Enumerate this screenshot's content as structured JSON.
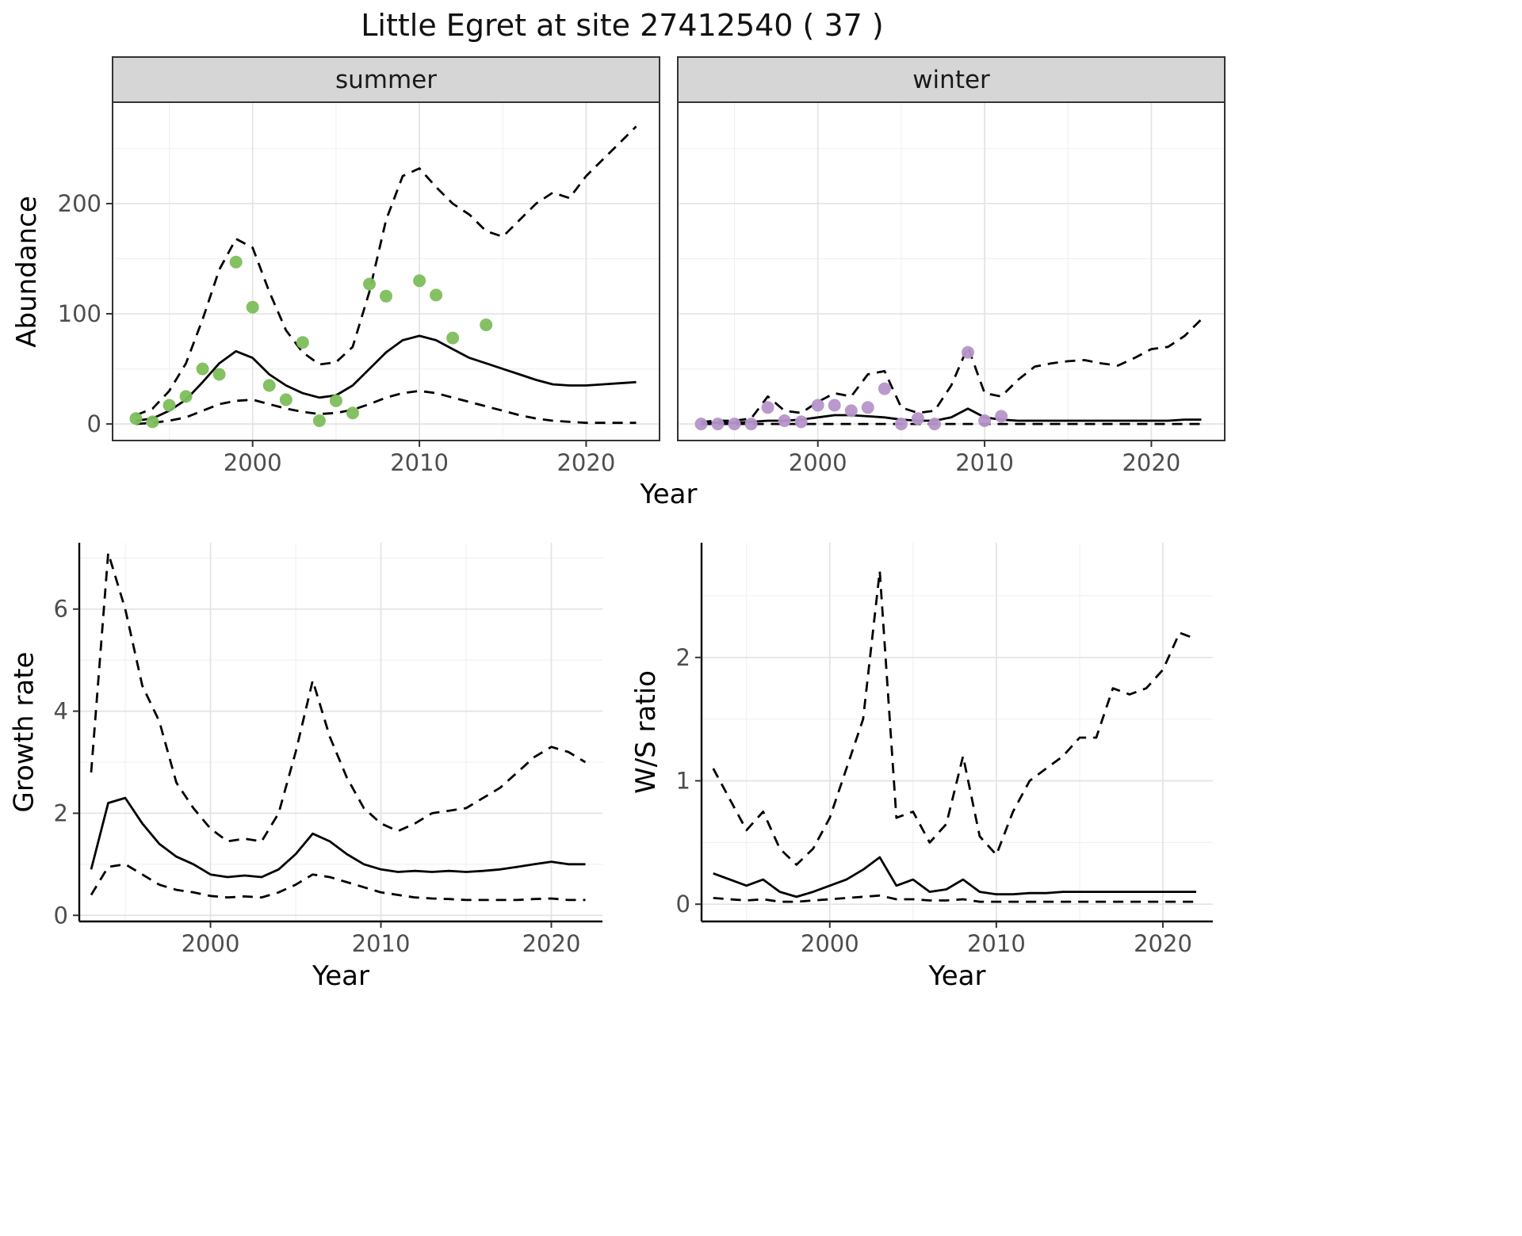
{
  "title": "Little Egret at site 27412540 ( 37 )",
  "top_row": {
    "ylabel": "Abundance",
    "xlabel": "Year",
    "facets": [
      {
        "label": "summer"
      },
      {
        "label": "winter"
      }
    ]
  },
  "bottom_left": {
    "ylabel": "Growth rate",
    "xlabel": "Year"
  },
  "bottom_right": {
    "ylabel": "W/S ratio",
    "xlabel": "Year"
  },
  "colors": {
    "summer_points": "#7cbe5b",
    "winter_points": "#b694c9",
    "line": "#000000",
    "strip_fill": "#d6d6d6",
    "tick_text": "#4d4d4d"
  },
  "chart_data": [
    {
      "id": "summer",
      "type": "line",
      "facet": "summer",
      "title": "Little Egret at site 27412540 ( 37 )",
      "xlabel": "Year",
      "ylabel": "Abundance",
      "grid": true,
      "legend": "none",
      "xlim": [
        1991.6,
        2024.4
      ],
      "ylim": [
        -15,
        292
      ],
      "xticks": [
        2000,
        2010,
        2020
      ],
      "yticks": [
        0,
        100,
        200
      ],
      "series": [
        {
          "name": "fit",
          "style": "solid",
          "x": [
            1993,
            1994,
            1995,
            1996,
            1997,
            1998,
            1999,
            2000,
            2001,
            2002,
            2003,
            2004,
            2005,
            2006,
            2007,
            2008,
            2009,
            2010,
            2011,
            2012,
            2013,
            2014,
            2015,
            2016,
            2017,
            2018,
            2019,
            2020,
            2021,
            2022,
            2023
          ],
          "y": [
            3,
            5,
            12,
            22,
            38,
            55,
            66,
            60,
            45,
            35,
            28,
            24,
            26,
            35,
            50,
            65,
            76,
            80,
            76,
            68,
            60,
            55,
            50,
            45,
            40,
            36,
            35,
            35,
            36,
            37,
            38
          ]
        },
        {
          "name": "upper_ci",
          "style": "dashed",
          "x": [
            1993,
            1994,
            1995,
            1996,
            1997,
            1998,
            1999,
            2000,
            2001,
            2002,
            2003,
            2004,
            2005,
            2006,
            2007,
            2008,
            2009,
            2010,
            2011,
            2012,
            2013,
            2014,
            2015,
            2016,
            2017,
            2018,
            2019,
            2020,
            2021,
            2022,
            2023
          ],
          "y": [
            8,
            14,
            30,
            55,
            95,
            140,
            168,
            160,
            120,
            85,
            65,
            54,
            56,
            70,
            120,
            185,
            225,
            232,
            215,
            200,
            190,
            175,
            170,
            185,
            200,
            210,
            205,
            225,
            240,
            255,
            270
          ]
        },
        {
          "name": "lower_ci",
          "style": "dashed",
          "x": [
            1993,
            1994,
            1995,
            1996,
            1997,
            1998,
            1999,
            2000,
            2001,
            2002,
            2003,
            2004,
            2005,
            2006,
            2007,
            2008,
            2009,
            2010,
            2011,
            2012,
            2013,
            2014,
            2015,
            2016,
            2017,
            2018,
            2019,
            2020,
            2021,
            2022,
            2023
          ],
          "y": [
            0,
            1,
            3,
            6,
            12,
            18,
            21,
            22,
            18,
            14,
            11,
            9,
            10,
            13,
            18,
            24,
            28,
            30,
            28,
            24,
            20,
            16,
            12,
            8,
            5,
            3,
            2,
            1,
            1,
            1,
            1
          ]
        }
      ],
      "points": {
        "name": "observed_counts",
        "color": "#7cbe5b",
        "x": [
          1993,
          1994,
          1995,
          1996,
          1997,
          1998,
          1999,
          2000,
          2001,
          2002,
          2003,
          2004,
          2005,
          2006,
          2007,
          2008,
          2010,
          2011,
          2012,
          2014
        ],
        "y": [
          5,
          2,
          17,
          25,
          50,
          45,
          147,
          106,
          35,
          22,
          74,
          3,
          21,
          10,
          127,
          116,
          130,
          117,
          78,
          90
        ]
      }
    },
    {
      "id": "winter",
      "type": "line",
      "facet": "winter",
      "xlabel": "Year",
      "ylabel": "Abundance",
      "grid": true,
      "legend": "none",
      "xlim": [
        1991.6,
        2024.4
      ],
      "ylim": [
        -15,
        292
      ],
      "xticks": [
        2000,
        2010,
        2020
      ],
      "yticks": [
        0,
        100,
        200
      ],
      "series": [
        {
          "name": "fit",
          "style": "solid",
          "x": [
            1993,
            1994,
            1995,
            1996,
            1997,
            1998,
            1999,
            2000,
            2001,
            2002,
            2003,
            2004,
            2005,
            2006,
            2007,
            2008,
            2009,
            2010,
            2011,
            2012,
            2013,
            2014,
            2015,
            2016,
            2017,
            2018,
            2019,
            2020,
            2021,
            2022,
            2023
          ],
          "y": [
            1,
            1,
            1,
            2,
            3,
            3,
            4,
            6,
            8,
            8,
            7,
            6,
            4,
            3,
            3,
            6,
            14,
            6,
            4,
            3,
            3,
            3,
            3,
            3,
            3,
            3,
            3,
            3,
            3,
            4,
            4
          ]
        },
        {
          "name": "upper_ci",
          "style": "dashed",
          "x": [
            1993,
            1994,
            1995,
            1996,
            1997,
            1998,
            1999,
            2000,
            2001,
            2002,
            2003,
            2004,
            2005,
            2006,
            2007,
            2008,
            2009,
            2010,
            2011,
            2012,
            2013,
            2014,
            2015,
            2016,
            2017,
            2018,
            2019,
            2020,
            2021,
            2022,
            2023
          ],
          "y": [
            2,
            3,
            3,
            5,
            25,
            12,
            10,
            20,
            28,
            25,
            45,
            48,
            15,
            10,
            12,
            35,
            70,
            28,
            25,
            40,
            52,
            55,
            57,
            58,
            55,
            53,
            60,
            68,
            70,
            80,
            95
          ]
        },
        {
          "name": "lower_ci",
          "style": "dashed",
          "x": [
            1993,
            1994,
            1995,
            1996,
            1997,
            1998,
            1999,
            2000,
            2001,
            2002,
            2003,
            2004,
            2005,
            2006,
            2007,
            2008,
            2009,
            2010,
            2011,
            2012,
            2013,
            2014,
            2015,
            2016,
            2017,
            2018,
            2019,
            2020,
            2021,
            2022,
            2023
          ],
          "y": [
            0,
            0,
            0,
            0,
            0,
            0,
            0,
            0,
            0,
            0,
            0,
            0,
            0,
            0,
            0,
            0,
            0,
            0,
            0,
            0,
            0,
            0,
            0,
            0,
            0,
            0,
            0,
            0,
            0,
            0,
            0
          ]
        }
      ],
      "points": {
        "name": "observed_counts",
        "color": "#b694c9",
        "x": [
          1993,
          1994,
          1995,
          1996,
          1997,
          1998,
          1999,
          2000,
          2001,
          2002,
          2003,
          2004,
          2005,
          2006,
          2007,
          2009,
          2010,
          2011
        ],
        "y": [
          0,
          0,
          0,
          0,
          15,
          3,
          2,
          17,
          17,
          12,
          15,
          32,
          0,
          5,
          0,
          65,
          3,
          7
        ]
      }
    },
    {
      "id": "growth",
      "type": "line",
      "xlabel": "Year",
      "ylabel": "Growth rate",
      "grid": true,
      "legend": "none",
      "xlim": [
        1992.3,
        2023
      ],
      "ylim": [
        -0.12,
        7.3
      ],
      "xticks": [
        2000,
        2010,
        2020
      ],
      "yticks": [
        0,
        2,
        4,
        6
      ],
      "series": [
        {
          "name": "fit",
          "style": "solid",
          "x": [
            1993,
            1994,
            1995,
            1996,
            1997,
            1998,
            1999,
            2000,
            2001,
            2002,
            2003,
            2004,
            2005,
            2006,
            2007,
            2008,
            2009,
            2010,
            2011,
            2012,
            2013,
            2014,
            2015,
            2016,
            2017,
            2018,
            2019,
            2020,
            2021,
            2022
          ],
          "y": [
            0.9,
            2.2,
            2.3,
            1.8,
            1.4,
            1.15,
            1.0,
            0.8,
            0.75,
            0.78,
            0.75,
            0.9,
            1.2,
            1.6,
            1.45,
            1.2,
            1.0,
            0.9,
            0.85,
            0.87,
            0.85,
            0.87,
            0.85,
            0.87,
            0.9,
            0.95,
            1.0,
            1.05,
            1.0,
            1.0
          ]
        },
        {
          "name": "upper_ci",
          "style": "dashed",
          "x": [
            1993,
            1994,
            1995,
            1996,
            1997,
            1998,
            1999,
            2000,
            2001,
            2002,
            2003,
            2004,
            2005,
            2006,
            2007,
            2008,
            2009,
            2010,
            2011,
            2012,
            2013,
            2014,
            2015,
            2016,
            2017,
            2018,
            2019,
            2020,
            2021,
            2022
          ],
          "y": [
            2.8,
            7.1,
            6.0,
            4.5,
            3.8,
            2.6,
            2.1,
            1.7,
            1.45,
            1.5,
            1.45,
            2.0,
            3.2,
            4.6,
            3.5,
            2.7,
            2.1,
            1.8,
            1.65,
            1.8,
            2.0,
            2.05,
            2.1,
            2.3,
            2.5,
            2.8,
            3.1,
            3.3,
            3.2,
            3.0
          ]
        },
        {
          "name": "lower_ci",
          "style": "dashed",
          "x": [
            1993,
            1994,
            1995,
            1996,
            1997,
            1998,
            1999,
            2000,
            2001,
            2002,
            2003,
            2004,
            2005,
            2006,
            2007,
            2008,
            2009,
            2010,
            2011,
            2012,
            2013,
            2014,
            2015,
            2016,
            2017,
            2018,
            2019,
            2020,
            2021,
            2022
          ],
          "y": [
            0.4,
            0.95,
            1.0,
            0.8,
            0.6,
            0.5,
            0.45,
            0.38,
            0.35,
            0.37,
            0.35,
            0.45,
            0.6,
            0.8,
            0.75,
            0.65,
            0.55,
            0.45,
            0.4,
            0.35,
            0.33,
            0.32,
            0.3,
            0.3,
            0.3,
            0.3,
            0.32,
            0.33,
            0.3,
            0.3
          ]
        }
      ]
    },
    {
      "id": "ratio",
      "type": "line",
      "xlabel": "Year",
      "ylabel": "W/S ratio",
      "grid": true,
      "legend": "none",
      "xlim": [
        1992.3,
        2023
      ],
      "ylim": [
        -0.14,
        2.93
      ],
      "xticks": [
        2000,
        2010,
        2020
      ],
      "yticks": [
        0,
        1,
        2
      ],
      "series": [
        {
          "name": "fit",
          "style": "solid",
          "x": [
            1993,
            1994,
            1995,
            1996,
            1997,
            1998,
            1999,
            2000,
            2001,
            2002,
            2003,
            2004,
            2005,
            2006,
            2007,
            2008,
            2009,
            2010,
            2011,
            2012,
            2013,
            2014,
            2015,
            2016,
            2017,
            2018,
            2019,
            2020,
            2021,
            2022
          ],
          "y": [
            0.25,
            0.2,
            0.15,
            0.2,
            0.1,
            0.06,
            0.1,
            0.15,
            0.2,
            0.28,
            0.38,
            0.15,
            0.2,
            0.1,
            0.12,
            0.2,
            0.1,
            0.08,
            0.08,
            0.09,
            0.09,
            0.1,
            0.1,
            0.1,
            0.1,
            0.1,
            0.1,
            0.1,
            0.1,
            0.1
          ]
        },
        {
          "name": "upper_ci",
          "style": "dashed",
          "x": [
            1993,
            1994,
            1995,
            1996,
            1997,
            1998,
            1999,
            2000,
            2001,
            2002,
            2003,
            2004,
            2005,
            2006,
            2007,
            2008,
            2009,
            2010,
            2011,
            2012,
            2013,
            2014,
            2015,
            2016,
            2017,
            2018,
            2019,
            2020,
            2021,
            2022
          ],
          "y": [
            1.1,
            0.85,
            0.6,
            0.75,
            0.45,
            0.32,
            0.45,
            0.7,
            1.1,
            1.5,
            2.7,
            0.7,
            0.75,
            0.5,
            0.65,
            1.2,
            0.55,
            0.4,
            0.75,
            1.0,
            1.1,
            1.2,
            1.35,
            1.35,
            1.75,
            1.7,
            1.75,
            1.9,
            2.2,
            2.15
          ]
        },
        {
          "name": "lower_ci",
          "style": "dashed",
          "x": [
            1993,
            1994,
            1995,
            1996,
            1997,
            1998,
            1999,
            2000,
            2001,
            2002,
            2003,
            2004,
            2005,
            2006,
            2007,
            2008,
            2009,
            2010,
            2011,
            2012,
            2013,
            2014,
            2015,
            2016,
            2017,
            2018,
            2019,
            2020,
            2021,
            2022
          ],
          "y": [
            0.05,
            0.04,
            0.03,
            0.04,
            0.02,
            0.02,
            0.03,
            0.04,
            0.05,
            0.06,
            0.07,
            0.04,
            0.04,
            0.03,
            0.03,
            0.04,
            0.02,
            0.02,
            0.02,
            0.02,
            0.02,
            0.02,
            0.02,
            0.02,
            0.02,
            0.02,
            0.02,
            0.02,
            0.02,
            0.02
          ]
        }
      ]
    }
  ]
}
